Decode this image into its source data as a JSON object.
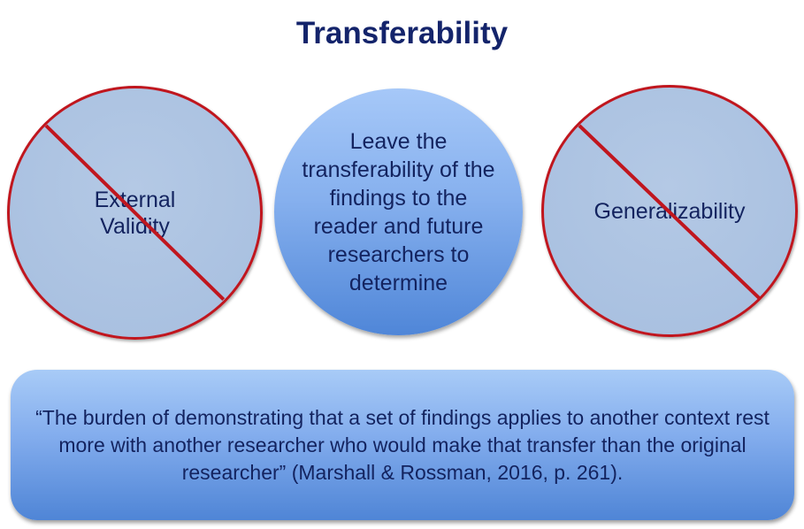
{
  "title": "Transferability",
  "circles": [
    {
      "text": "External Validity",
      "line1": "External",
      "line2": "Validity",
      "crossed": true
    },
    {
      "text": "Leave the transferability of the findings to the reader and future researchers to determine",
      "crossed": false
    },
    {
      "text": "Generalizability",
      "crossed": true
    }
  ],
  "quote": "“The burden of demonstrating that a set of findings applies to another context rest more with another researcher who would make that transfer than the original researcher” (Marshall & Rossman, 2016, p. 261).",
  "colors": {
    "title": "#14246b",
    "slash": "#c0161e",
    "text": "#13235f"
  }
}
